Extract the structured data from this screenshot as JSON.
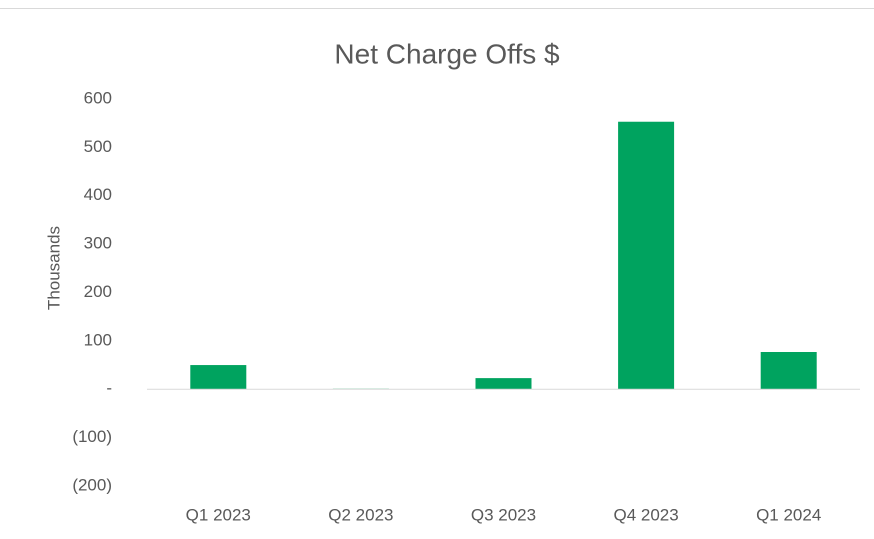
{
  "chart_data": {
    "type": "bar",
    "title": "Net Charge Offs $",
    "y_label": "Thousands",
    "categories": [
      "Q1 2023",
      "Q2 2023",
      "Q3 2023",
      "Q4 2023",
      "Q1 2024"
    ],
    "values": [
      50,
      1,
      23,
      553,
      77
    ],
    "color": "#00a35f",
    "ylim": [
      -200,
      600
    ],
    "yticks": [
      {
        "value": -200,
        "label": "(200)"
      },
      {
        "value": -100,
        "label": "(100)"
      },
      {
        "value": 0,
        "label": "-"
      },
      100,
      200,
      300,
      400,
      500,
      600
    ],
    "grid": false
  }
}
